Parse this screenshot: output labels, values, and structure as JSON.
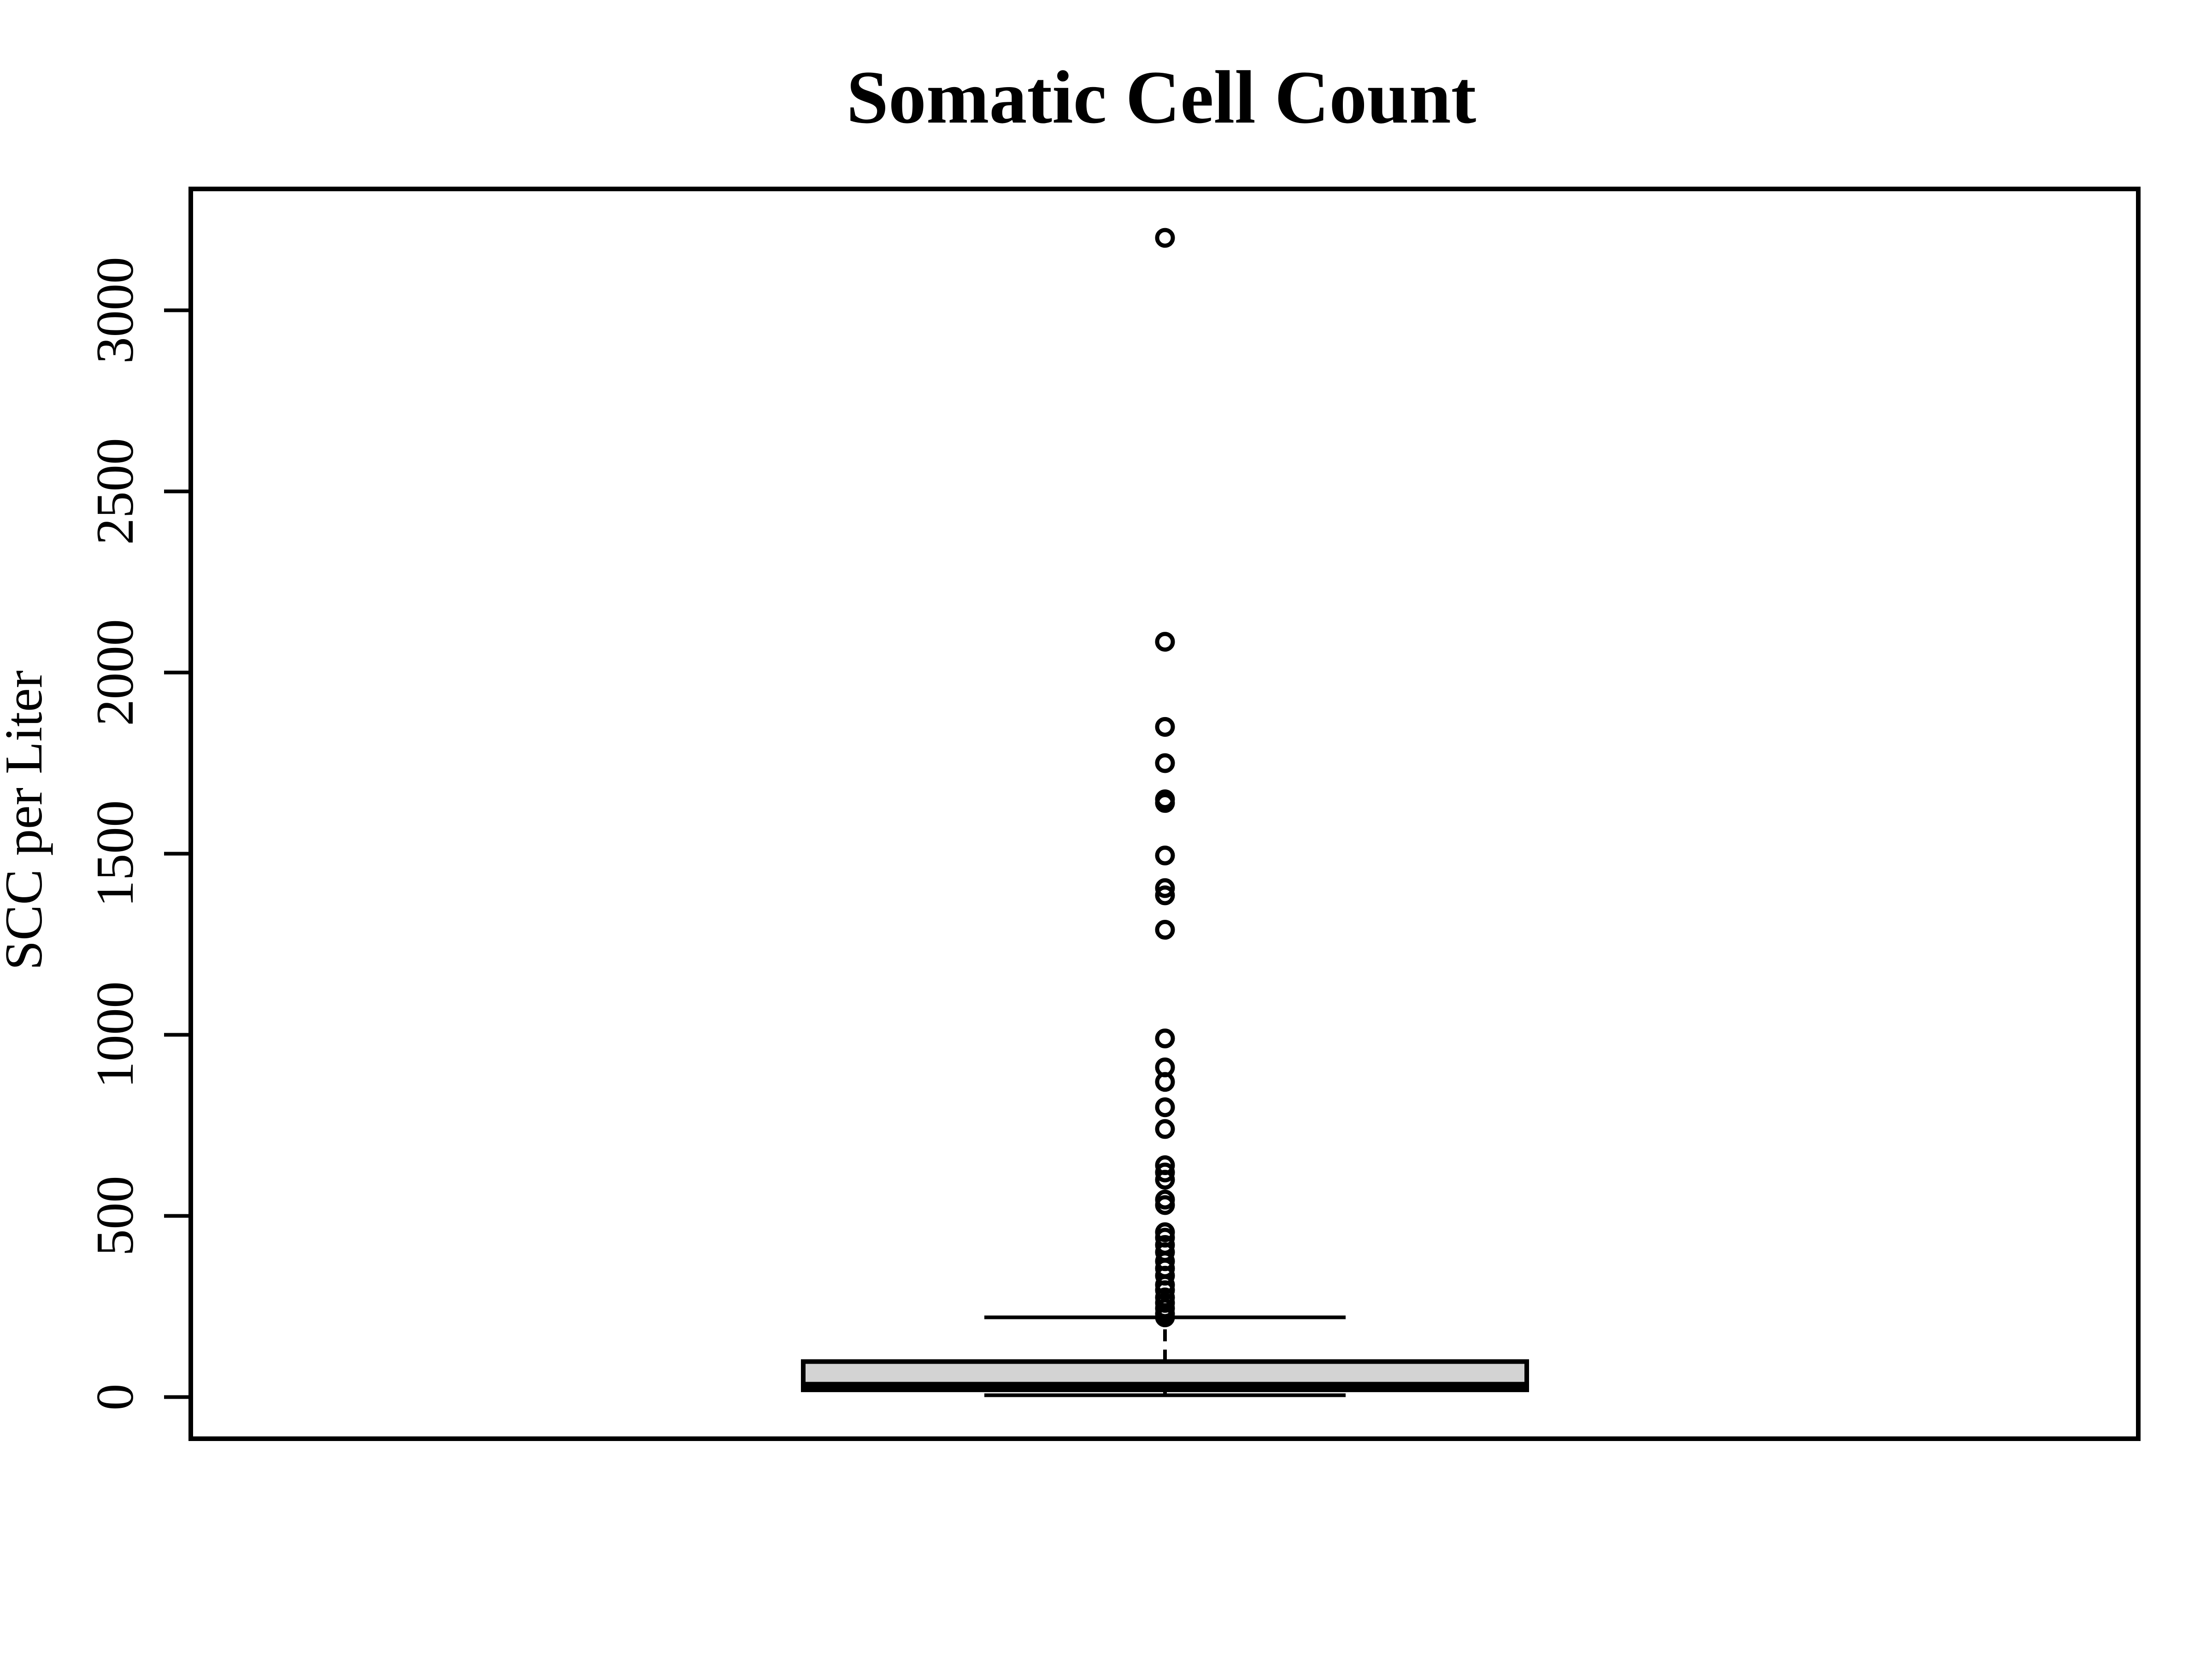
{
  "chart_data": {
    "type": "box",
    "title": "Somatic Cell Count",
    "xlabel": "",
    "ylabel": "SCC per Liter",
    "ylim": [
      -115,
      3335
    ],
    "yticks": [
      0,
      500,
      1000,
      1500,
      2000,
      2500,
      3000
    ],
    "ytick_labels": [
      "0",
      "500",
      "1000",
      "1500",
      "2000",
      "2500",
      "3000"
    ],
    "grid": false,
    "box": {
      "min": 5,
      "q1": 20,
      "median": 28,
      "q3": 98,
      "whisker_low": 5,
      "whisker_high": 220,
      "fill": "#d3d3d3"
    },
    "outliers": [
      3200,
      2085,
      1850,
      1750,
      1650,
      1640,
      1495,
      1405,
      1385,
      1290,
      990,
      910,
      870,
      800,
      740,
      640,
      620,
      600,
      545,
      530,
      455,
      440,
      420,
      400,
      375,
      355,
      335,
      310,
      295,
      275,
      260,
      245,
      230,
      220
    ],
    "colors": {
      "stroke": "#000000",
      "box_fill": "#d3d3d3"
    }
  }
}
